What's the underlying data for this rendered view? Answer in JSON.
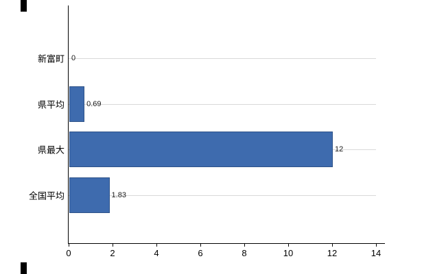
{
  "chart_data": {
    "type": "bar",
    "orientation": "horizontal",
    "title": "",
    "xlabel": "",
    "ylabel": "",
    "categories": [
      "新富町",
      "県平均",
      "県最大",
      "全国平均"
    ],
    "values": [
      0,
      0.69,
      12,
      1.83
    ],
    "value_labels": [
      "0",
      "0.69",
      "12",
      "1.83"
    ],
    "xlim": [
      0,
      14
    ],
    "x_ticks": [
      "0",
      "2",
      "4",
      "6",
      "8",
      "10",
      "12",
      "14"
    ],
    "legend": "none",
    "grid": "light horizontal line at each category",
    "colors": {
      "bar_fill": "#3e6bae",
      "bar_border": "#2e5288",
      "gridline": "#d9d9d9",
      "axis": "#000000",
      "background": "#ffffff",
      "label_text": "#000000",
      "value_text": "#1a1a1a"
    }
  }
}
